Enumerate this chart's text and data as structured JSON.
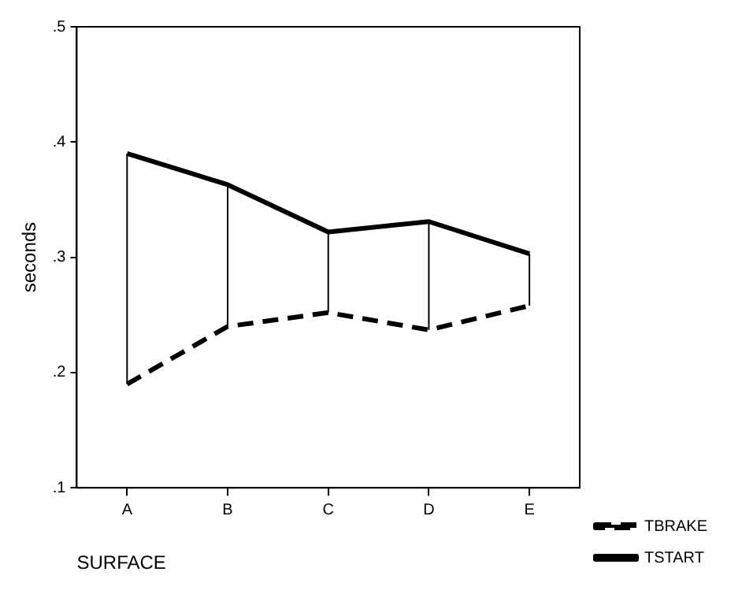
{
  "chart_data": {
    "type": "line",
    "xlabel": "SURFACE",
    "ylabel": "seconds",
    "categories": [
      "A",
      "B",
      "C",
      "D",
      "E"
    ],
    "series": [
      {
        "name": "TBRAKE",
        "color": "#000000",
        "line_style": "dashed",
        "values": [
          0.19,
          0.24,
          0.252,
          0.237,
          0.258
        ]
      },
      {
        "name": "TSTART",
        "color": "#000000",
        "line_style": "solid",
        "values": [
          0.39,
          0.363,
          0.322,
          0.331,
          0.303
        ],
        "errors": [
          [
            0.19,
            0.39
          ],
          [
            0.24,
            0.363
          ],
          [
            0.252,
            0.322
          ],
          [
            0.237,
            0.331
          ],
          [
            0.258,
            0.303
          ]
        ]
      }
    ],
    "ylim": [
      0.1,
      0.5
    ],
    "yticks": [
      {
        "value": 0.1,
        "label": ".1"
      },
      {
        "value": 0.2,
        "label": ".2"
      },
      {
        "value": 0.3,
        "label": ".3"
      },
      {
        "value": 0.4,
        "label": ".4"
      },
      {
        "value": 0.5,
        "label": ".5"
      }
    ],
    "grid": false,
    "legend": "bottom right",
    "marker": "none"
  }
}
